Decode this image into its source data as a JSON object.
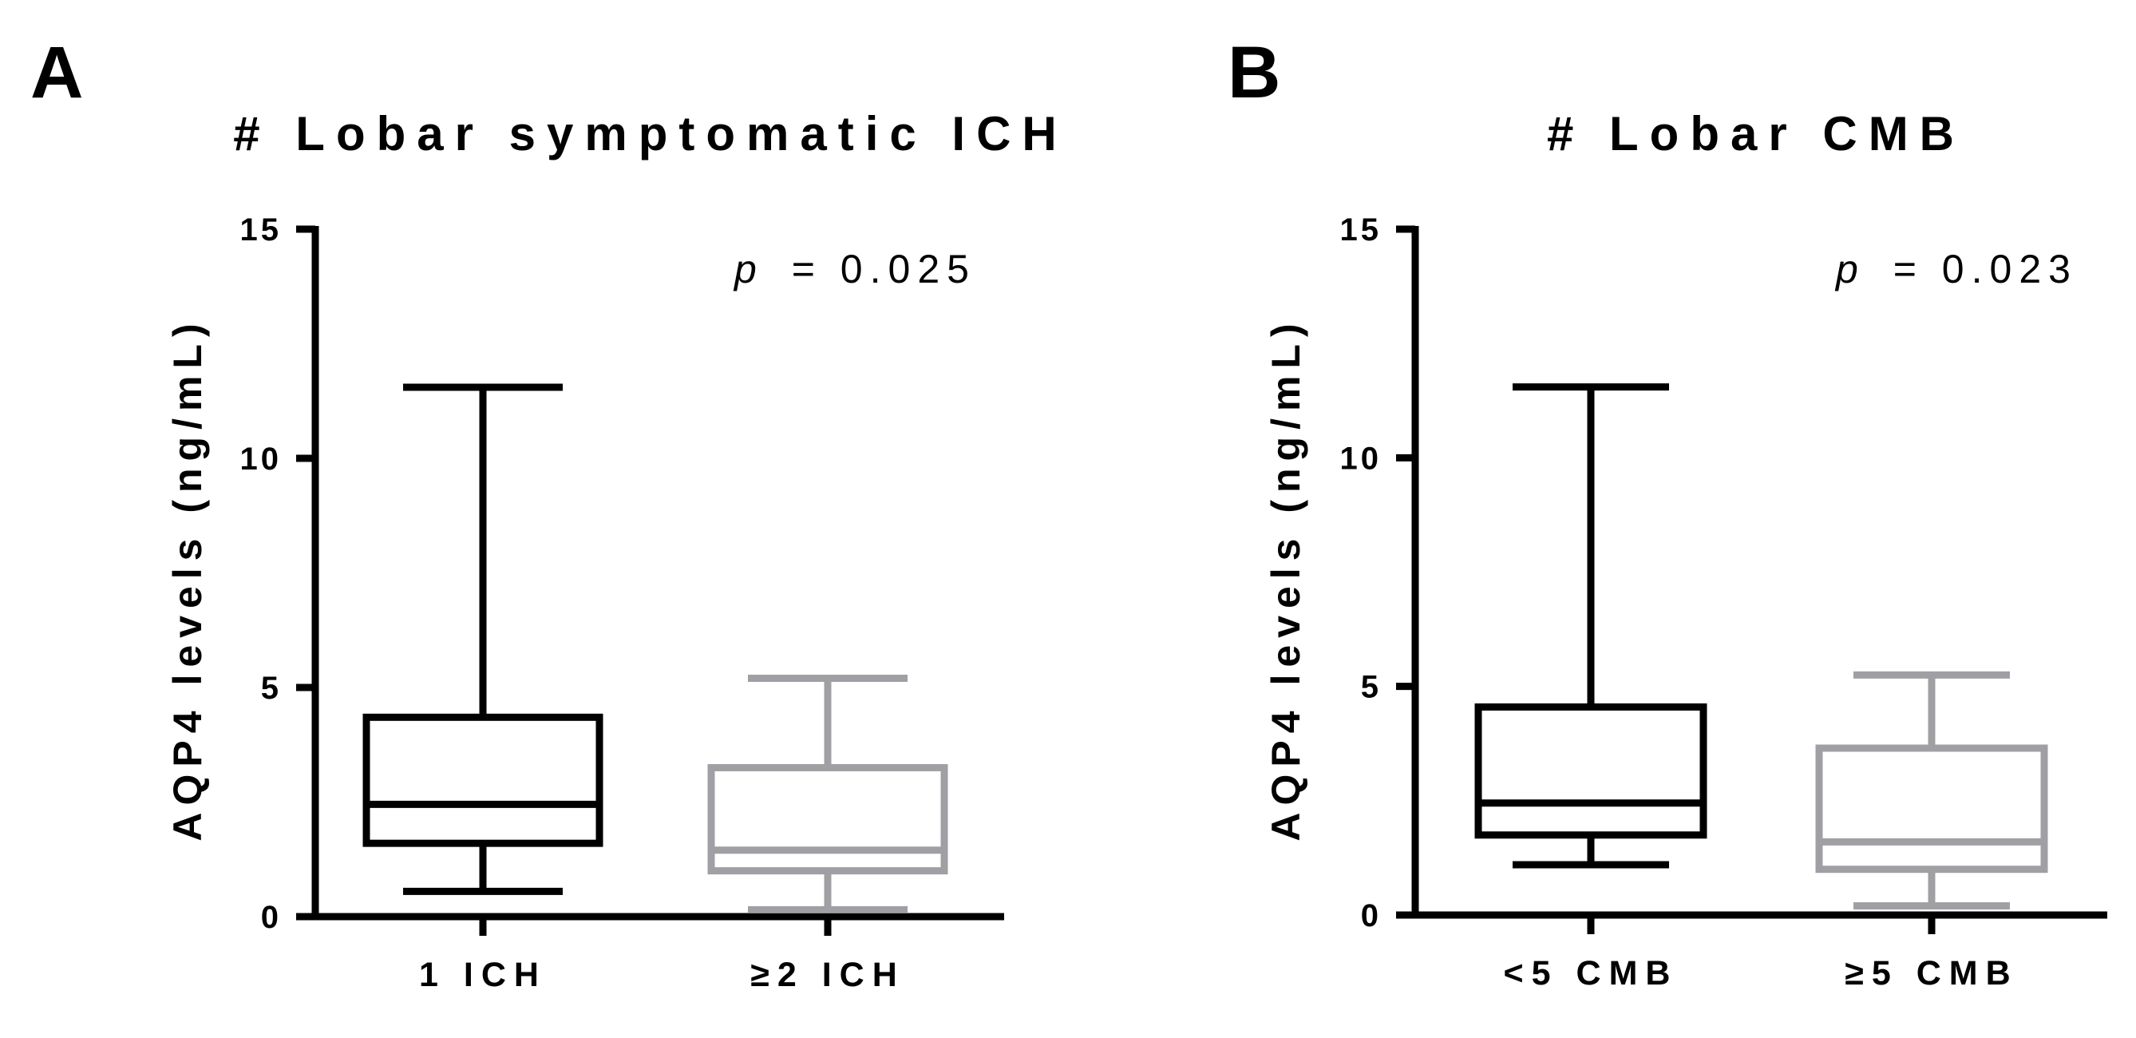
{
  "chart_data": [
    {
      "type": "box",
      "panel_label": "A",
      "title": "# Lobar symptomatic ICH",
      "ylabel": "AQP4 levels (ng/mL)",
      "ylim": [
        0,
        15
      ],
      "yticks": [
        "0",
        "5",
        "10",
        "15"
      ],
      "annotation_italic": "p",
      "annotation_value": "= 0.025",
      "categories": [
        "1 ICH",
        "≥2 ICH"
      ],
      "boxes": [
        {
          "category": "1 ICH",
          "min": 0.55,
          "q1": 1.6,
          "median": 2.45,
          "q3": 4.35,
          "max": 11.55,
          "color": "#000000"
        },
        {
          "category": "≥2 ICH",
          "min": 0.15,
          "q1": 1.0,
          "median": 1.45,
          "q3": 3.25,
          "max": 5.2,
          "color": "#a0a0a4"
        }
      ]
    },
    {
      "type": "box",
      "panel_label": "B",
      "title": "# Lobar CMB",
      "ylabel": "AQP4 levels (ng/mL)",
      "ylim": [
        0,
        15
      ],
      "yticks": [
        "0",
        "5",
        "10",
        "15"
      ],
      "annotation_italic": "p",
      "annotation_value": "= 0.023",
      "categories": [
        "<5 CMB",
        "≥5 CMB"
      ],
      "boxes": [
        {
          "category": "<5 CMB",
          "min": 1.1,
          "q1": 1.75,
          "median": 2.45,
          "q3": 4.55,
          "max": 11.55,
          "color": "#000000"
        },
        {
          "category": "≥5 CMB",
          "min": 0.2,
          "q1": 1.0,
          "median": 1.6,
          "q3": 3.65,
          "max": 5.25,
          "color": "#a0a0a4"
        }
      ]
    }
  ]
}
